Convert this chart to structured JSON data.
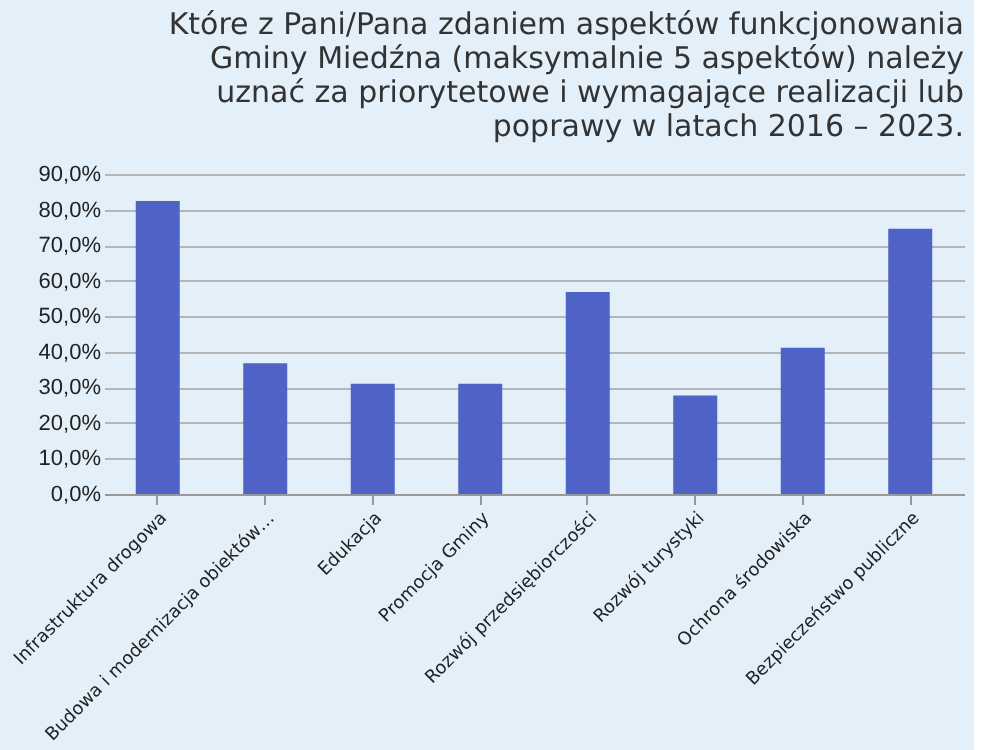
{
  "chart_data": {
    "type": "bar",
    "title": [
      "Które z Pani/Pana zdaniem aspektów funkcjonowania",
      "Gminy Miedźna (maksymalnie 5 aspektów) należy",
      "uznać za priorytetowe i wymagające realizacji lub",
      "poprawy w latach 2016 – 2023."
    ],
    "categories": [
      "Infrastruktura drogowa",
      "Budowa i modernizacja obiektów…",
      "Edukacja",
      "Promocja Gminy",
      "Rozwój przedsiębiorczości",
      "Rozwój turystyki",
      "Ochrona środowiska",
      "Bezpieczeństwo publiczne"
    ],
    "values": [
      82.4,
      36.8,
      31.0,
      31.0,
      56.8,
      27.7,
      41.1,
      74.6
    ],
    "color": "#4f63c6",
    "ylim": [
      0,
      90
    ],
    "yticks": [
      {
        "value": 0,
        "label": "0,0%"
      },
      {
        "value": 10,
        "label": "10,0%"
      },
      {
        "value": 20,
        "label": "20,0%"
      },
      {
        "value": 30,
        "label": "30,0%"
      },
      {
        "value": 40,
        "label": "40,0%"
      },
      {
        "value": 50,
        "label": "50,0%"
      },
      {
        "value": 60,
        "label": "60,0%"
      },
      {
        "value": 70,
        "label": "70,0%"
      },
      {
        "value": 80,
        "label": "80,0%"
      },
      {
        "value": 90,
        "label": "90,0%"
      }
    ],
    "grid": "y"
  }
}
